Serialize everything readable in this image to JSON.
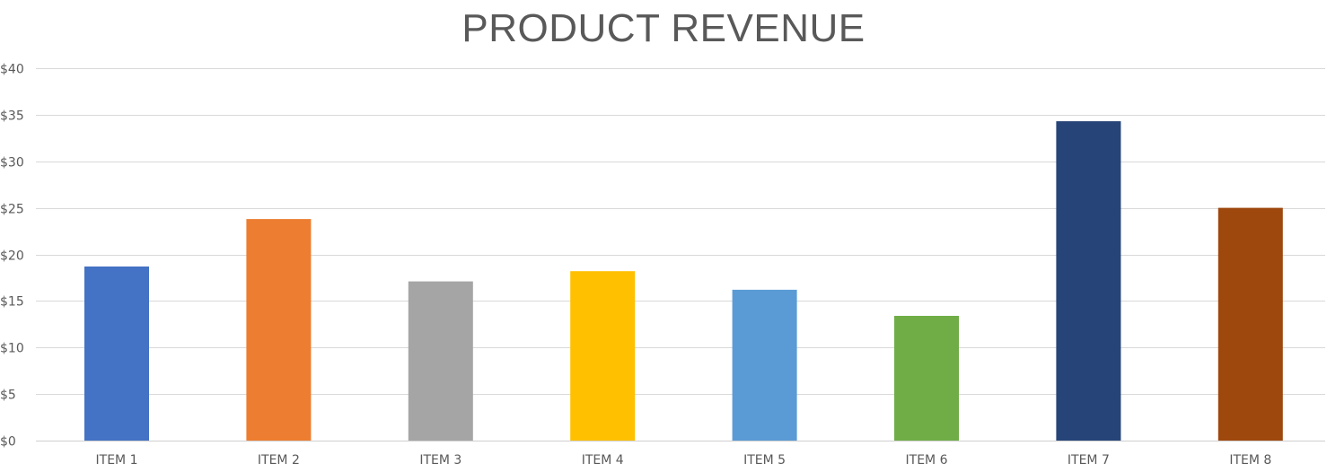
{
  "chart_data": {
    "type": "bar",
    "title": "PRODUCT REVENUE",
    "xlabel": "",
    "ylabel": "",
    "categories": [
      "ITEM 1",
      "ITEM 2",
      "ITEM 3",
      "ITEM 4",
      "ITEM 5",
      "ITEM 6",
      "ITEM 7",
      "ITEM 8"
    ],
    "values": [
      18.7,
      23.8,
      17.1,
      18.2,
      16.2,
      13.4,
      34.3,
      25.0
    ],
    "colors": [
      "#4472C4",
      "#ED7D31",
      "#A5A5A5",
      "#FFC000",
      "#5B9BD5",
      "#70AD47",
      "#264478",
      "#9E480E"
    ],
    "ylim": [
      0,
      40
    ],
    "yticks": [
      0,
      5,
      10,
      15,
      20,
      25,
      30,
      35,
      40
    ],
    "ytick_labels": [
      "$0",
      "$5",
      "$10",
      "$15",
      "$20",
      "$25",
      "$30",
      "$35",
      "$40"
    ],
    "grid": true,
    "legend": "none"
  }
}
